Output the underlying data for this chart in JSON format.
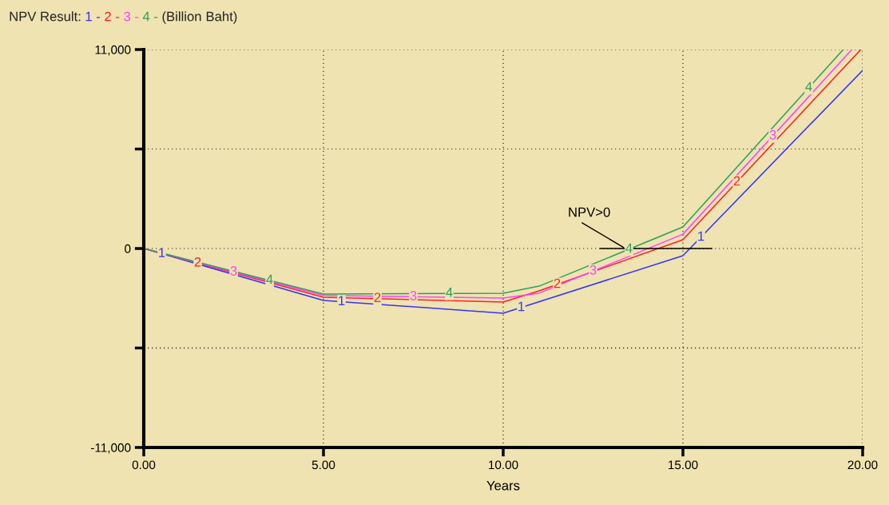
{
  "chart_data": {
    "type": "line",
    "title": "NPV Result: 1 - 2 - 3 - 4 - (Billion Baht)",
    "xlabel": "Years",
    "xlim": [
      0,
      20
    ],
    "ylim": [
      -11000,
      11000
    ],
    "xticks": [
      {
        "value": 0,
        "label": "0.00"
      },
      {
        "value": 5,
        "label": "5.00"
      },
      {
        "value": 10,
        "label": "10.00"
      },
      {
        "value": 15,
        "label": "15.00"
      },
      {
        "value": 20,
        "label": "20.00"
      }
    ],
    "yticks": [
      {
        "value": -11000,
        "label": "-11,000"
      },
      {
        "value": -5500,
        "label": null
      },
      {
        "value": 0,
        "label": "0"
      },
      {
        "value": 5500,
        "label": null
      },
      {
        "value": 11000,
        "label": "11,000"
      }
    ],
    "grid": true,
    "line_style": "solid",
    "series": [
      {
        "name": "1",
        "color": "#3333ff",
        "x": [
          0,
          5,
          10,
          15,
          20
        ],
        "values": [
          0,
          -2870,
          -3580,
          -400,
          9850
        ]
      },
      {
        "name": "2",
        "color": "#ff2020",
        "x": [
          0,
          5,
          10,
          11,
          15,
          19.95
        ],
        "values": [
          0,
          -2690,
          -2960,
          -2340,
          490,
          11000
        ]
      },
      {
        "name": "3",
        "color": "#ff40ff",
        "x": [
          0,
          5,
          10,
          11,
          15,
          19.7
        ],
        "values": [
          0,
          -2600,
          -2740,
          -2470,
          790,
          11000
        ]
      },
      {
        "name": "4",
        "color": "#2ca05a",
        "x": [
          0,
          5,
          10,
          11,
          15,
          19.46
        ],
        "values": [
          0,
          -2520,
          -2470,
          -2080,
          1190,
          11000
        ]
      }
    ],
    "annotations": [
      {
        "text": "NPV>0",
        "x": 13.4,
        "y": 0
      }
    ]
  }
}
